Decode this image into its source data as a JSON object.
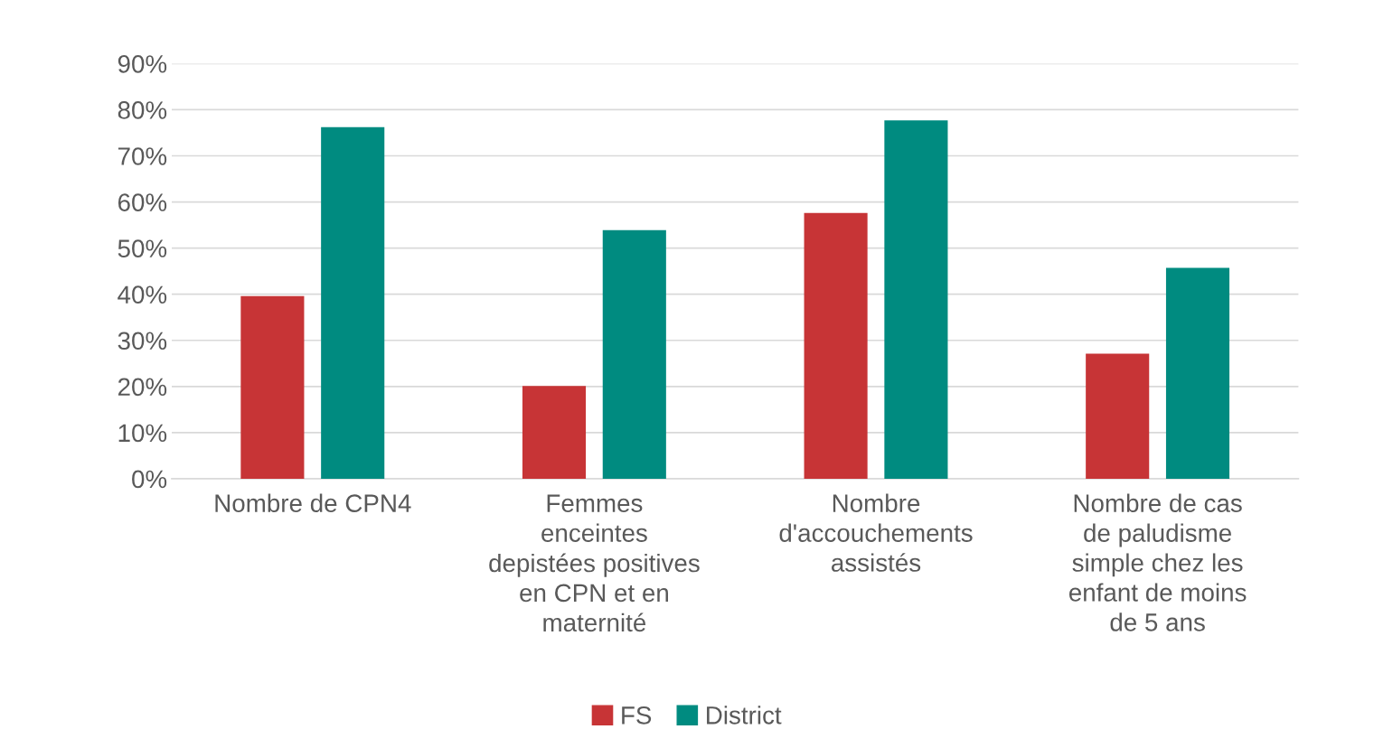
{
  "chart_data": {
    "type": "bar",
    "categories": [
      "Nombre de CPN4",
      "Femmes\nenceintes\ndepistées positives\nen CPN et en\nmaternité",
      "Nombre\nd'accouchements\nassistés",
      "Nombre de cas\nde paludisme\nsimple chez les\nenfant de moins\nde 5 ans"
    ],
    "series": [
      {
        "name": "FS",
        "color": "#c73436",
        "values": [
          39.6,
          20.1,
          57.6,
          27.1
        ]
      },
      {
        "name": "District",
        "color": "#008b80",
        "values": [
          76.2,
          53.9,
          77.7,
          45.7
        ]
      }
    ],
    "ylim": [
      0,
      90
    ],
    "yticks": [
      {
        "value": 0,
        "label": "0%"
      },
      {
        "value": 10,
        "label": "10%"
      },
      {
        "value": 20,
        "label": "20%"
      },
      {
        "value": 30,
        "label": "30%"
      },
      {
        "value": 40,
        "label": "40%"
      },
      {
        "value": 50,
        "label": "50%"
      },
      {
        "value": 60,
        "label": "60%"
      },
      {
        "value": 70,
        "label": "70%"
      },
      {
        "value": 80,
        "label": "80%"
      },
      {
        "value": 90,
        "label": "90%"
      }
    ],
    "grid": "y",
    "legend": "bottom"
  }
}
